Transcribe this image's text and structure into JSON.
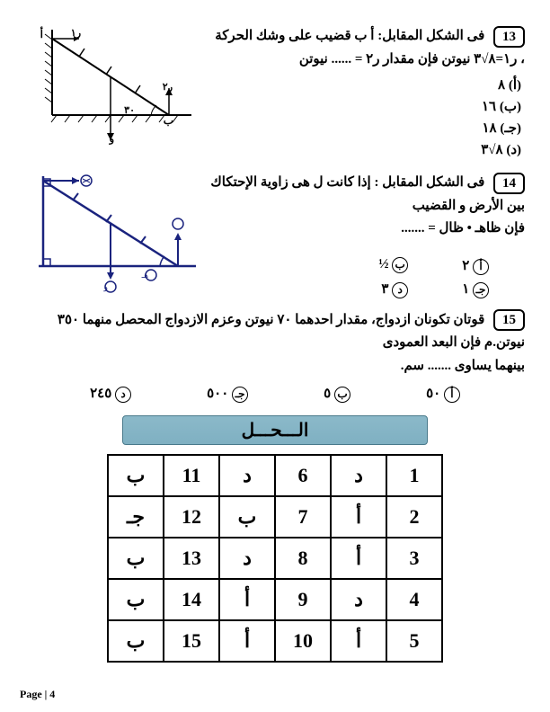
{
  "q13": {
    "num": "13",
    "line1": "فى الشكل المقابل: أ ب قضيب على وشك الحركة",
    "line2": "، ر١=٨√٣ نيوتن فإن مقدار ر٢ = ...... نيوتن",
    "opt_a": "(أ) ٨",
    "opt_b": "(ب) ١٦",
    "opt_c": "(جـ) ١٨",
    "opt_d": "(د) ٨√٣",
    "diagram": {
      "stroke": "#000000",
      "fill_hatch": "#000000",
      "angle_label": "٣٠",
      "top_left": "أ",
      "top_r": "ر١",
      "bottom_b": "ب",
      "bottom_r": "ر٢",
      "bottom_w": "و"
    }
  },
  "q14": {
    "num": "14",
    "line1": "فى الشكل المقابل : إذا كانت ل هى زاوية الإحتكاك بين الأرض و القضيب",
    "line2": "فإن ظاهـ • ظال = .......",
    "opt_a_letter": "أ",
    "opt_a_val": "٢",
    "opt_b_letter": "ب",
    "opt_b_val": "½",
    "opt_c_letter": "جـ",
    "opt_c_val": "١",
    "opt_d_letter": "د",
    "opt_d_val": "٣",
    "diagram": {
      "stroke": "#1a237e",
      "tick_color": "#1a237e"
    }
  },
  "q15": {
    "num": "15",
    "line1": "قوتان تكونان ازدواج، مقدار احدهما ٧٠ نيوتن وعزم الازدواج المحصل منهما ٣٥٠ نيوتن.م  فإن البعد العمودى",
    "line2": "بينهما يساوى ....... سم.",
    "opt_a_letter": "أ",
    "opt_a_val": "٥٠",
    "opt_b_letter": "ب",
    "opt_b_val": "٥",
    "opt_c_letter": "جـ",
    "opt_c_val": "٥٠٠",
    "opt_d_letter": "د",
    "opt_d_val": "٢٤٥"
  },
  "solution_title": "الـــحـــل",
  "answers": {
    "rows": [
      [
        "1",
        "د",
        "6",
        "د",
        "11",
        "ب"
      ],
      [
        "2",
        "أ",
        "7",
        "ب",
        "12",
        "جـ"
      ],
      [
        "3",
        "أ",
        "8",
        "د",
        "13",
        "ب"
      ],
      [
        "4",
        "د",
        "9",
        "أ",
        "14",
        "ب"
      ],
      [
        "5",
        "أ",
        "10",
        "أ",
        "15",
        "ب"
      ]
    ]
  },
  "footer": "Page | 4"
}
